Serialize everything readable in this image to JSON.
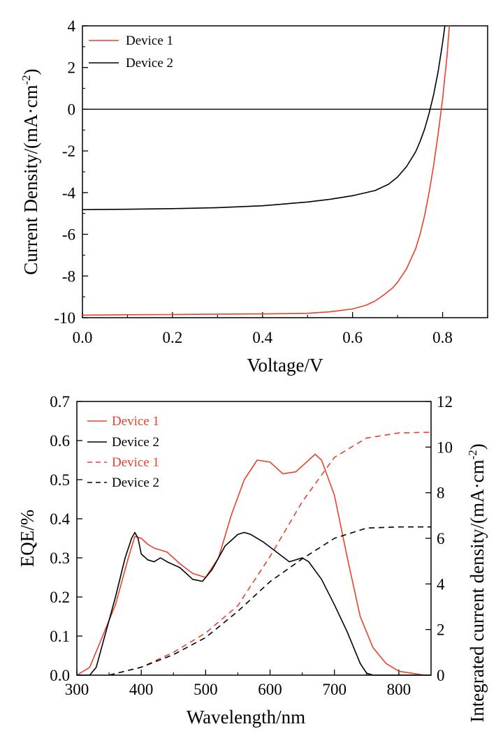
{
  "chart_data": [
    {
      "type": "line",
      "xlabel": "Voltage/V",
      "ylabel": "Current Density/(mA·cm",
      "ylabel_sup": "-2",
      "ylabel_close": ")",
      "xlim": [
        0.0,
        0.9
      ],
      "ylim": [
        -10,
        4
      ],
      "xticks": [
        0.0,
        0.2,
        0.4,
        0.6,
        0.8
      ],
      "xtick_labels": [
        "0.0",
        "0.2",
        "0.4",
        "0.6",
        "0.8"
      ],
      "yticks": [
        -10,
        -8,
        -6,
        -4,
        -2,
        0,
        2,
        4
      ],
      "ytick_labels": [
        "-10",
        "-8",
        "-6",
        "-4",
        "-2",
        "0",
        "2",
        "4"
      ],
      "zero_line": true,
      "legend_position": "top-left",
      "series": [
        {
          "name": "Device 1",
          "color": "#e8412c",
          "style": "solid",
          "x": [
            0.0,
            0.1,
            0.2,
            0.3,
            0.4,
            0.5,
            0.55,
            0.6,
            0.63,
            0.65,
            0.67,
            0.69,
            0.7,
            0.72,
            0.74,
            0.75,
            0.76,
            0.77,
            0.78,
            0.79,
            0.8,
            0.81,
            0.815
          ],
          "y": [
            -9.88,
            -9.86,
            -9.85,
            -9.83,
            -9.82,
            -9.79,
            -9.72,
            -9.58,
            -9.4,
            -9.2,
            -8.9,
            -8.55,
            -8.3,
            -7.65,
            -6.7,
            -6.0,
            -5.1,
            -4.0,
            -2.7,
            -1.2,
            0.5,
            2.6,
            4.0
          ]
        },
        {
          "name": "Device 2",
          "color": "#000000",
          "style": "solid",
          "x": [
            0.0,
            0.1,
            0.2,
            0.3,
            0.4,
            0.5,
            0.55,
            0.6,
            0.65,
            0.68,
            0.7,
            0.72,
            0.74,
            0.75,
            0.76,
            0.77,
            0.78,
            0.79,
            0.8,
            0.805
          ],
          "y": [
            -4.82,
            -4.8,
            -4.77,
            -4.72,
            -4.63,
            -4.45,
            -4.32,
            -4.15,
            -3.9,
            -3.6,
            -3.25,
            -2.75,
            -2.05,
            -1.55,
            -0.95,
            -0.2,
            0.7,
            1.8,
            3.2,
            4.0
          ]
        }
      ]
    },
    {
      "type": "line",
      "xlabel": "Wavelength/nm",
      "ylabel": "EQE/%",
      "y2label": "Integrated current density/(mA·cm",
      "y2label_sup": "-2",
      "y2label_close": ")",
      "xlim": [
        300,
        850
      ],
      "ylim": [
        0.0,
        0.7
      ],
      "y2lim": [
        0,
        12
      ],
      "xticks": [
        300,
        400,
        500,
        600,
        700,
        800
      ],
      "xtick_labels": [
        "300",
        "400",
        "500",
        "600",
        "700",
        "800"
      ],
      "yticks": [
        0.0,
        0.1,
        0.2,
        0.3,
        0.4,
        0.5,
        0.6,
        0.7
      ],
      "ytick_labels": [
        "0.0",
        "0.1",
        "0.2",
        "0.3",
        "0.4",
        "0.5",
        "0.6",
        "0.7"
      ],
      "y2ticks": [
        0,
        2,
        4,
        6,
        8,
        10,
        12
      ],
      "y2tick_labels": [
        "0",
        "2",
        "4",
        "6",
        "8",
        "10",
        "12"
      ],
      "legend_position": "top-left",
      "series": [
        {
          "name": "Device 1",
          "color": "#e8412c",
          "style": "solid",
          "axis": "left",
          "x": [
            300,
            320,
            340,
            360,
            380,
            390,
            400,
            410,
            420,
            440,
            460,
            480,
            500,
            520,
            540,
            560,
            580,
            600,
            620,
            640,
            660,
            670,
            680,
            700,
            720,
            740,
            760,
            780,
            800,
            820,
            840,
            850
          ],
          "y": [
            0.0,
            0.02,
            0.1,
            0.18,
            0.3,
            0.355,
            0.35,
            0.335,
            0.325,
            0.315,
            0.285,
            0.26,
            0.25,
            0.3,
            0.41,
            0.5,
            0.55,
            0.545,
            0.515,
            0.52,
            0.55,
            0.565,
            0.55,
            0.46,
            0.3,
            0.15,
            0.07,
            0.03,
            0.01,
            0.005,
            0.0,
            0.0
          ]
        },
        {
          "name": "Device 2",
          "color": "#000000",
          "style": "solid",
          "axis": "left",
          "x": [
            300,
            320,
            330,
            340,
            360,
            375,
            385,
            390,
            395,
            400,
            410,
            420,
            430,
            440,
            460,
            480,
            495,
            510,
            530,
            550,
            560,
            570,
            590,
            610,
            630,
            650,
            660,
            680,
            700,
            720,
            740,
            750,
            760,
            780,
            800,
            850
          ],
          "y": [
            0.0,
            0.0,
            0.02,
            0.08,
            0.2,
            0.3,
            0.35,
            0.365,
            0.35,
            0.31,
            0.295,
            0.29,
            0.3,
            0.29,
            0.275,
            0.245,
            0.24,
            0.27,
            0.33,
            0.36,
            0.365,
            0.36,
            0.34,
            0.315,
            0.29,
            0.3,
            0.29,
            0.245,
            0.18,
            0.11,
            0.03,
            0.005,
            0.0,
            0.0,
            0.0,
            0.0
          ]
        },
        {
          "name": "Device 1",
          "color": "#e8412c",
          "style": "dashed",
          "axis": "right",
          "x": [
            350,
            400,
            450,
            500,
            550,
            600,
            650,
            700,
            750,
            800,
            850
          ],
          "y": [
            0.0,
            0.35,
            1.0,
            1.85,
            3.05,
            5.2,
            7.6,
            9.55,
            10.4,
            10.62,
            10.65
          ]
        },
        {
          "name": "Device 2",
          "color": "#000000",
          "style": "dashed",
          "axis": "right",
          "x": [
            350,
            400,
            450,
            500,
            550,
            600,
            650,
            700,
            750,
            800,
            850
          ],
          "y": [
            0.0,
            0.35,
            0.9,
            1.65,
            2.8,
            4.1,
            5.1,
            6.0,
            6.45,
            6.5,
            6.5
          ]
        }
      ]
    }
  ]
}
